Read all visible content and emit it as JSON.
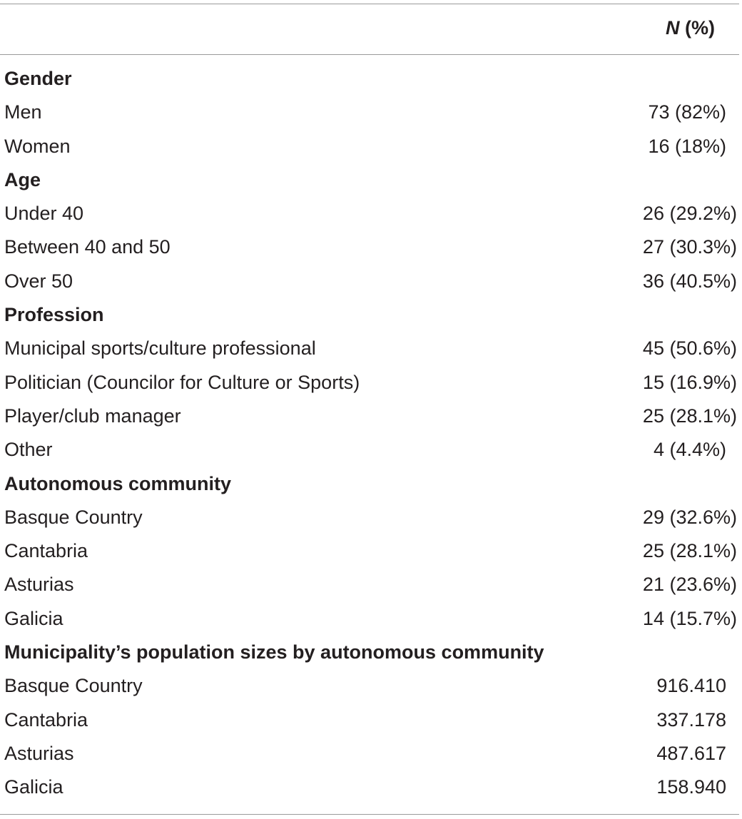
{
  "header": {
    "n_symbol": "N",
    "pct_symbol": " (%)"
  },
  "sections": [
    {
      "title": "Gender",
      "rows": [
        {
          "label": "Men",
          "value": "73 (82%)"
        },
        {
          "label": "Women",
          "value": "16 (18%)"
        }
      ]
    },
    {
      "title": "Age",
      "rows": [
        {
          "label": "Under 40",
          "value": "26 (29.2%)"
        },
        {
          "label": "Between 40 and 50",
          "value": "27 (30.3%)"
        },
        {
          "label": "Over 50",
          "value": "36 (40.5%)"
        }
      ]
    },
    {
      "title": "Profession",
      "rows": [
        {
          "label": "Municipal sports/culture professional",
          "value": "45 (50.6%)"
        },
        {
          "label": "Politician (Councilor for Culture or Sports)",
          "value": "15 (16.9%)"
        },
        {
          "label": "Player/club manager",
          "value": "25 (28.1%)"
        },
        {
          "label": "Other",
          "value": "4 (4.4%)"
        }
      ]
    },
    {
      "title": "Autonomous community",
      "rows": [
        {
          "label": "Basque Country",
          "value": "29 (32.6%)"
        },
        {
          "label": "Cantabria",
          "value": "25 (28.1%)"
        },
        {
          "label": "Asturias",
          "value": "21 (23.6%)"
        },
        {
          "label": "Galicia",
          "value": "14 (15.7%)"
        }
      ]
    },
    {
      "title": "Municipality’s population sizes by autonomous community",
      "rows": [
        {
          "label": "Basque Country",
          "value": "916.410"
        },
        {
          "label": "Cantabria",
          "value": "337.178"
        },
        {
          "label": "Asturias",
          "value": "487.617"
        },
        {
          "label": "Galicia",
          "value": "158.940"
        }
      ]
    }
  ]
}
